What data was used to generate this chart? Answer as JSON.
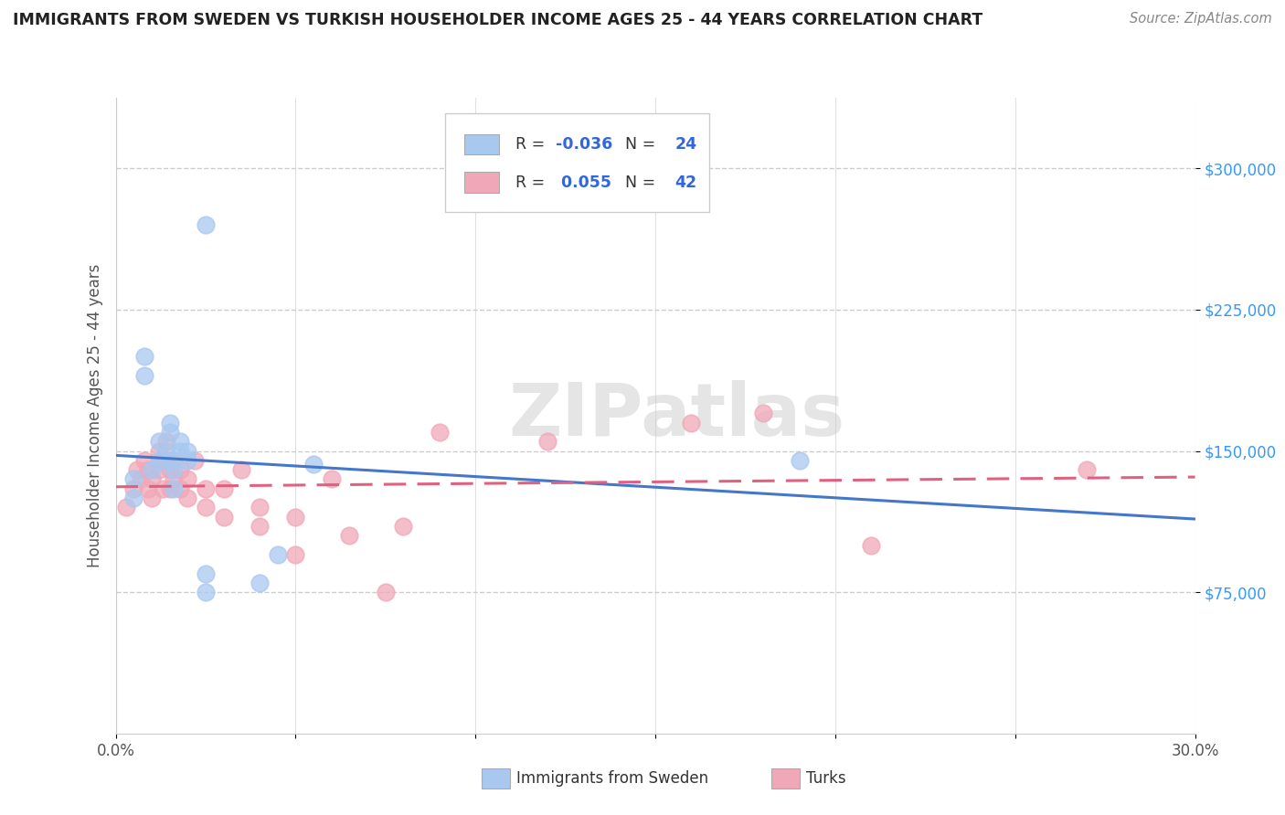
{
  "title": "IMMIGRANTS FROM SWEDEN VS TURKISH HOUSEHOLDER INCOME AGES 25 - 44 YEARS CORRELATION CHART",
  "source": "Source: ZipAtlas.com",
  "ylabel": "Householder Income Ages 25 - 44 years",
  "xlim": [
    0.0,
    0.3
  ],
  "ylim": [
    0,
    337500
  ],
  "yticks": [
    75000,
    150000,
    225000,
    300000
  ],
  "ytick_labels": [
    "$75,000",
    "$150,000",
    "$225,000",
    "$300,000"
  ],
  "xticks": [
    0.0,
    0.05,
    0.1,
    0.15,
    0.2,
    0.25,
    0.3
  ],
  "xtick_labels": [
    "0.0%",
    "",
    "",
    "",
    "",
    "",
    "30.0%"
  ],
  "legend_r_sweden": "-0.036",
  "legend_n_sweden": "24",
  "legend_r_turks": "0.055",
  "legend_n_turks": "42",
  "sweden_color": "#a8c8f0",
  "turks_color": "#f0a8b8",
  "sweden_line_color": "#4477cc",
  "turks_line_color": "#e06080",
  "watermark": "ZIPatlas",
  "bottom_label_sweden": "Immigrants from Sweden",
  "bottom_label_turks": "Turks",
  "sweden_x": [
    0.005,
    0.005,
    0.008,
    0.008,
    0.01,
    0.012,
    0.012,
    0.014,
    0.015,
    0.015,
    0.015,
    0.016,
    0.016,
    0.018,
    0.018,
    0.02,
    0.02,
    0.025,
    0.025,
    0.025,
    0.04,
    0.045,
    0.055,
    0.19
  ],
  "sweden_y": [
    125000,
    135000,
    190000,
    200000,
    140000,
    145000,
    155000,
    150000,
    145000,
    160000,
    165000,
    130000,
    140000,
    150000,
    155000,
    145000,
    150000,
    270000,
    75000,
    85000,
    80000,
    95000,
    143000,
    145000
  ],
  "turks_x": [
    0.003,
    0.005,
    0.006,
    0.007,
    0.008,
    0.009,
    0.009,
    0.01,
    0.01,
    0.012,
    0.012,
    0.013,
    0.013,
    0.014,
    0.015,
    0.015,
    0.016,
    0.016,
    0.018,
    0.018,
    0.02,
    0.02,
    0.022,
    0.025,
    0.025,
    0.03,
    0.03,
    0.035,
    0.04,
    0.04,
    0.05,
    0.05,
    0.06,
    0.065,
    0.075,
    0.08,
    0.09,
    0.12,
    0.16,
    0.18,
    0.21,
    0.27
  ],
  "turks_y": [
    120000,
    130000,
    140000,
    135000,
    145000,
    130000,
    140000,
    125000,
    135000,
    140000,
    150000,
    130000,
    145000,
    155000,
    130000,
    140000,
    135000,
    145000,
    130000,
    140000,
    125000,
    135000,
    145000,
    120000,
    130000,
    115000,
    130000,
    140000,
    110000,
    120000,
    95000,
    115000,
    135000,
    105000,
    75000,
    110000,
    160000,
    155000,
    165000,
    170000,
    100000,
    140000
  ]
}
